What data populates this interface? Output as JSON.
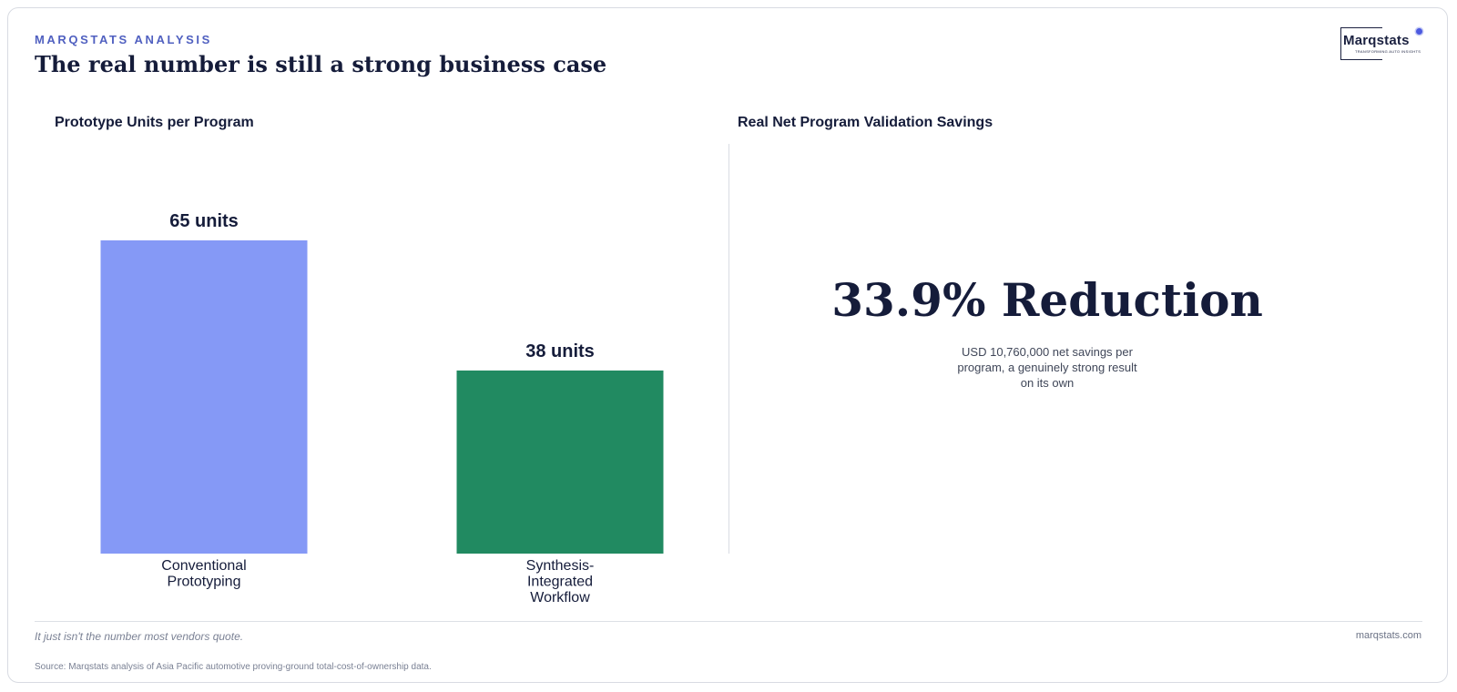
{
  "header": {
    "eyebrow": "MARQSTATS ANALYSIS",
    "title": "The real number is still a strong business case"
  },
  "logo": {
    "name": "Marqstats",
    "tagline": "TRANSFORMING AUTO INSIGHTS"
  },
  "left_panel": {
    "title": "Prototype Units per Program"
  },
  "right_panel": {
    "title": "Real Net Program Validation Savings",
    "headline": "33.9% Reduction",
    "subtext": "USD 10,760,000 net savings per program, a genuinely strong result on its own"
  },
  "chart_data": {
    "type": "bar",
    "title": "Prototype Units per Program",
    "categories": [
      [
        "Conventional",
        "Prototyping"
      ],
      [
        "Synthesis-",
        "Integrated",
        "Workflow"
      ]
    ],
    "values": [
      65,
      38
    ],
    "value_labels": [
      "65 units",
      "38 units"
    ],
    "unit": "units",
    "colors": [
      "#8599f6",
      "#218a61"
    ],
    "ylim": [
      0,
      65
    ],
    "grid": false,
    "legend": "none"
  },
  "footer": {
    "note": "It just isn't the number most vendors quote.",
    "site": "marqstats.com",
    "source": "Source: Marqstats analysis of Asia Pacific automotive proving-ground total-cost-of-ownership data."
  }
}
